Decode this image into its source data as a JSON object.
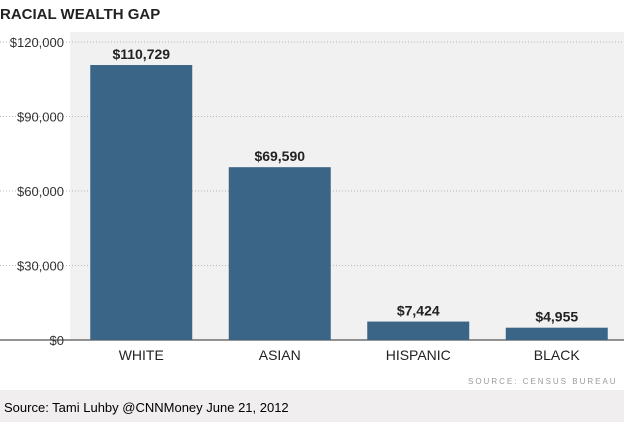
{
  "chart_data": {
    "type": "bar",
    "title": "RACIAL WEALTH GAP",
    "categories": [
      "WHITE",
      "ASIAN",
      "HISPANIC",
      "BLACK"
    ],
    "values": [
      110729,
      69590,
      7424,
      4955
    ],
    "data_labels": [
      "$110,729",
      "$69,590",
      "$7,424",
      "$4,955"
    ],
    "yticks": [
      0,
      30000,
      60000,
      90000,
      120000
    ],
    "ytick_labels": [
      "$0",
      "$30,000",
      "$60,000",
      "$90,000",
      "$120,000"
    ],
    "ylim": [
      0,
      120000
    ],
    "xlabel": "",
    "ylabel": "",
    "grid": true,
    "bar_color": "#3a6587"
  },
  "source": "SOURCE: CENSUS BUREAU",
  "credit": "Source:  Tami Luhby @CNNMoney June 21, 2012"
}
